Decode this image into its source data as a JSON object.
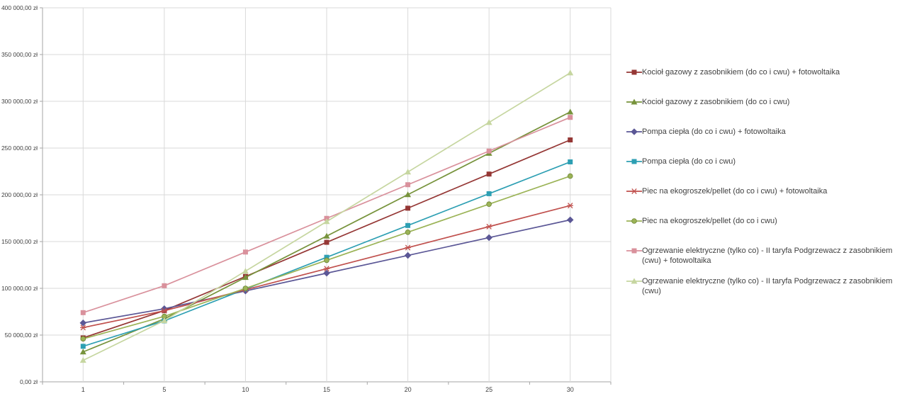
{
  "chart_data": {
    "type": "line",
    "title": "",
    "xlabel": "",
    "ylabel": "",
    "x_categories": [
      "1",
      "5",
      "10",
      "15",
      "20",
      "25",
      "30"
    ],
    "ylim": [
      0,
      400000
    ],
    "grid": true,
    "legend_position": "right",
    "currency_suffix": "zł",
    "y_ticks": [
      {
        "value": 0,
        "label": "0,00 zł"
      },
      {
        "value": 50000,
        "label": "50 000,00 zł"
      },
      {
        "value": 100000,
        "label": "100 000,00 zł"
      },
      {
        "value": 150000,
        "label": "150 000,00 zł"
      },
      {
        "value": 200000,
        "label": "200 000,00 zł"
      },
      {
        "value": 250000,
        "label": "250 000,00 zł"
      },
      {
        "value": 300000,
        "label": "300 000,00 zł"
      },
      {
        "value": 350000,
        "label": "350 000,00 zł"
      },
      {
        "value": 400000,
        "label": "400 000,00 zł"
      }
    ],
    "series": [
      {
        "name": "kociol-gazowy-fotowoltaika",
        "label": "Kocioł gazowy z zasobnikiem (do co i cwu) + fotowoltaika",
        "color": "#953735",
        "marker": "square",
        "values": [
          47000,
          76200,
          112700,
          149200,
          185700,
          222200,
          258700
        ]
      },
      {
        "name": "kociol-gazowy",
        "label": "Kocioł gazowy z zasobnikiem (do co i cwu)",
        "color": "#77933C",
        "marker": "triangle",
        "values": [
          32000,
          67400,
          111650,
          155900,
          200150,
          244400,
          288650
        ]
      },
      {
        "name": "pompa-ciepla-fotowoltaika",
        "label": "Pompa ciepła (do co i cwu) + fotowoltaika",
        "color": "#5B5796",
        "marker": "diamond",
        "values": [
          63000,
          78200,
          97200,
          116200,
          135200,
          154200,
          173200
        ]
      },
      {
        "name": "pompa-ciepla",
        "label": "Pompa ciepła (do co i cwu)",
        "color": "#2D9FB3",
        "marker": "square",
        "values": [
          38000,
          65200,
          99200,
          133200,
          167200,
          201200,
          235200
        ]
      },
      {
        "name": "piec-ekogroszek-fotowoltaika",
        "label": "Piec na ekogroszek/pellet (do co i cwu) + fotowoltaika",
        "color": "#C0504D",
        "marker": "asterisk",
        "values": [
          58000,
          76000,
          98500,
          121000,
          143500,
          166000,
          188500
        ]
      },
      {
        "name": "piec-ekogroszek",
        "label": "Piec na ekogroszek/pellet (do co i cwu)",
        "color": "#9BB356",
        "marker": "circle",
        "values": [
          46000,
          70000,
          100000,
          130000,
          160000,
          190000,
          220000
        ]
      },
      {
        "name": "ogrzewanie-elektryczne-fotowoltaika",
        "label": "Ogrzewanie elektryczne (tylko co) - II taryfa Podgrzewacz z zasobnikiem (cwu) + fotowoltaika",
        "color": "#D9919C",
        "marker": "square",
        "values": [
          74000,
          102800,
          138800,
          174800,
          210800,
          246800,
          282800
        ]
      },
      {
        "name": "ogrzewanie-elektryczne",
        "label": "Ogrzewanie elektryczne (tylko co) - II taryfa Podgrzewacz z zasobnikiem (cwu)",
        "color": "#C6D6A0",
        "marker": "triangle",
        "values": [
          23000,
          65400,
          118400,
          171400,
          224400,
          277400,
          330400
        ]
      }
    ],
    "style": {
      "gridline_color": "#D9D9D9",
      "axis_color": "#A6A6A6",
      "tick_label_color": "#404040",
      "background": "#FFFFFF"
    }
  }
}
